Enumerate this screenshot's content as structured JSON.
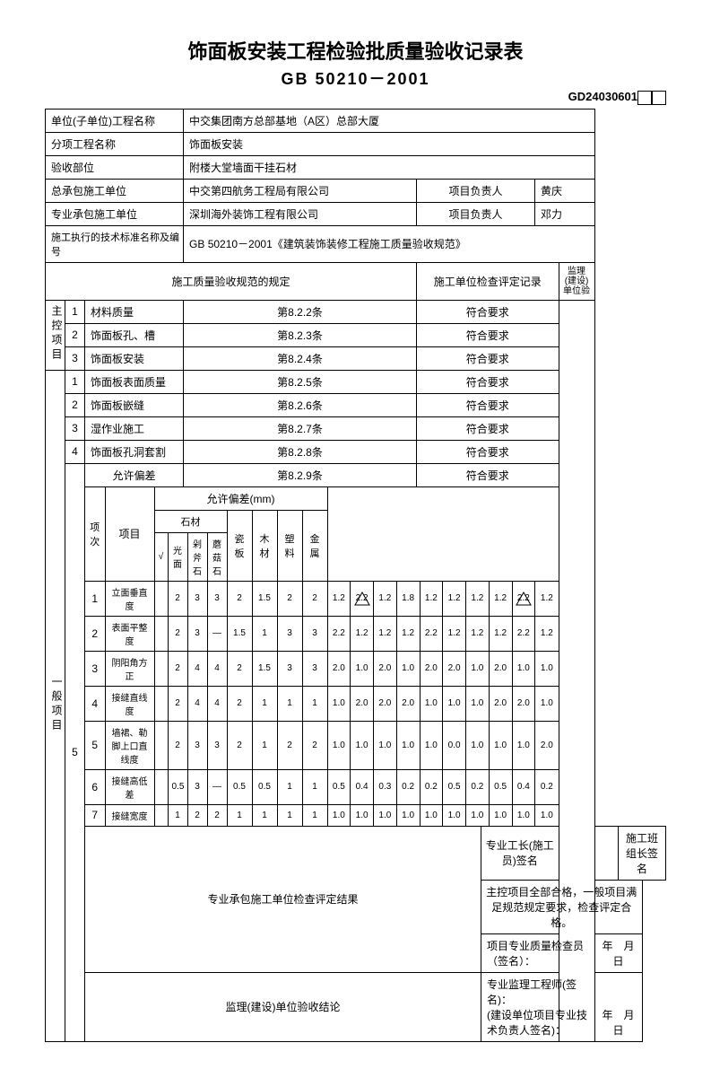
{
  "title": "饰面板安装工程检验批质量验收记录表",
  "subtitle": "GB 50210－2001",
  "doc_code": "GD24030601",
  "header": {
    "l1": "单位(子单位)工程名称",
    "v1": "中交集团南方总部基地（A区）总部大厦",
    "l2": "分项工程名称",
    "v2": "饰面板安装",
    "l3": "验收部位",
    "v3": "附楼大堂墙面干挂石材",
    "l4": "总承包施工单位",
    "v4": "中交第四航务工程局有限公司",
    "l4b": "项目负责人",
    "v4b": "黄庆",
    "l5": "专业承包施工单位",
    "v5": "深圳海外装饰工程有限公司",
    "l5b": "项目负责人",
    "v5b": "邓力",
    "l6": "施工执行的技术标准名称及编号",
    "v6": "GB 50210－2001《建筑装饰装修工程施工质量验收规范》"
  },
  "sect": {
    "spec_head": "施工质量验收规范的规定",
    "check_head": "施工单位检查评定记录",
    "sup_head": "监理(建设)单位验",
    "main_cat": "主控项目",
    "gen_cat": "一般项目",
    "ok": "符合要求"
  },
  "items_main": [
    {
      "n": "1",
      "name": "材料质量",
      "clause": "第8.2.2条"
    },
    {
      "n": "2",
      "name": "饰面板孔、槽",
      "clause": "第8.2.3条"
    },
    {
      "n": "3",
      "name": "饰面板安装",
      "clause": "第8.2.4条"
    }
  ],
  "items_gen": [
    {
      "n": "1",
      "name": "饰面板表面质量",
      "clause": "第8.2.5条"
    },
    {
      "n": "2",
      "name": "饰面板嵌缝",
      "clause": "第8.2.6条"
    },
    {
      "n": "3",
      "name": "湿作业施工",
      "clause": "第8.2.7条"
    },
    {
      "n": "4",
      "name": "饰面板孔洞套割",
      "clause": "第8.2.8条"
    }
  ],
  "dev": {
    "title": "允许偏差",
    "clause": "第8.2.9条",
    "unit": "允许偏差(mm)",
    "h_item_no": "项次",
    "h_item": "项目",
    "h_stone": "石材",
    "h_check": "√",
    "h_s1": "光面",
    "h_s2": "剁斧石",
    "h_s3": "蘑菇石",
    "h_c": "瓷板",
    "h_w": "木材",
    "h_p": "塑料",
    "h_m": "金属",
    "rows": [
      {
        "n": "1",
        "name": "立面垂直度",
        "a": [
          "2",
          "3",
          "3",
          "2",
          "1.5",
          "2",
          "2"
        ],
        "m": [
          "1.2",
          "2.2",
          "1.2",
          "1.8",
          "1.2",
          "1.2",
          "1.2",
          "1.2",
          "2.2",
          "1.2"
        ],
        "tri": [
          1,
          8
        ]
      },
      {
        "n": "2",
        "name": "表面平整度",
        "a": [
          "2",
          "3",
          "—",
          "1.5",
          "1",
          "3",
          "3"
        ],
        "m": [
          "2.2",
          "1.2",
          "1.2",
          "1.2",
          "2.2",
          "1.2",
          "1.2",
          "1.2",
          "2.2",
          "1.2"
        ]
      },
      {
        "n": "3",
        "name": "阴阳角方正",
        "a": [
          "2",
          "4",
          "4",
          "2",
          "1.5",
          "3",
          "3"
        ],
        "m": [
          "2.0",
          "1.0",
          "2.0",
          "1.0",
          "2.0",
          "2.0",
          "1.0",
          "2.0",
          "1.0",
          "1.0"
        ]
      },
      {
        "n": "4",
        "name": "接缝直线度",
        "a": [
          "2",
          "4",
          "4",
          "2",
          "1",
          "1",
          "1"
        ],
        "m": [
          "1.0",
          "2.0",
          "2.0",
          "2.0",
          "1.0",
          "1.0",
          "1.0",
          "2.0",
          "2.0",
          "1.0"
        ]
      },
      {
        "n": "5",
        "name": "墙裙、勒脚上口直线度",
        "a": [
          "2",
          "3",
          "3",
          "2",
          "1",
          "2",
          "2"
        ],
        "m": [
          "1.0",
          "1.0",
          "1.0",
          "1.0",
          "1.0",
          "0.0",
          "1.0",
          "1.0",
          "1.0",
          "2.0"
        ]
      },
      {
        "n": "6",
        "name": "接缝高低差",
        "a": [
          "0.5",
          "3",
          "—",
          "0.5",
          "0.5",
          "1",
          "1"
        ],
        "m": [
          "0.5",
          "0.4",
          "0.3",
          "0.2",
          "0.2",
          "0.5",
          "0.2",
          "0.5",
          "0.4",
          "0.2"
        ]
      },
      {
        "n": "7",
        "name": "接缝宽度",
        "a": [
          "1",
          "2",
          "2",
          "1",
          "1",
          "1",
          "1"
        ],
        "m": [
          "1.0",
          "1.0",
          "1.0",
          "1.0",
          "1.0",
          "1.0",
          "1.0",
          "1.0",
          "1.0",
          "1.0"
        ]
      }
    ]
  },
  "footer": {
    "f1_lbl": "专业承包施工单位检查评定结果",
    "f1_s1": "专业工长(施工员)签名",
    "f1_s2": "施工班组长签名",
    "f1_text": "主控项目全部合格，一般项目满足规范规定要求，检查评定合格。",
    "f1_sig": "项目专业质量检查员（签名）：",
    "date": "年　月　日",
    "f2_lbl": "监理(建设)单位验收结论",
    "f2_s1": "专业监理工程师(签名)：",
    "f2_s2": "(建设单位项目专业技术负责人签名)："
  }
}
